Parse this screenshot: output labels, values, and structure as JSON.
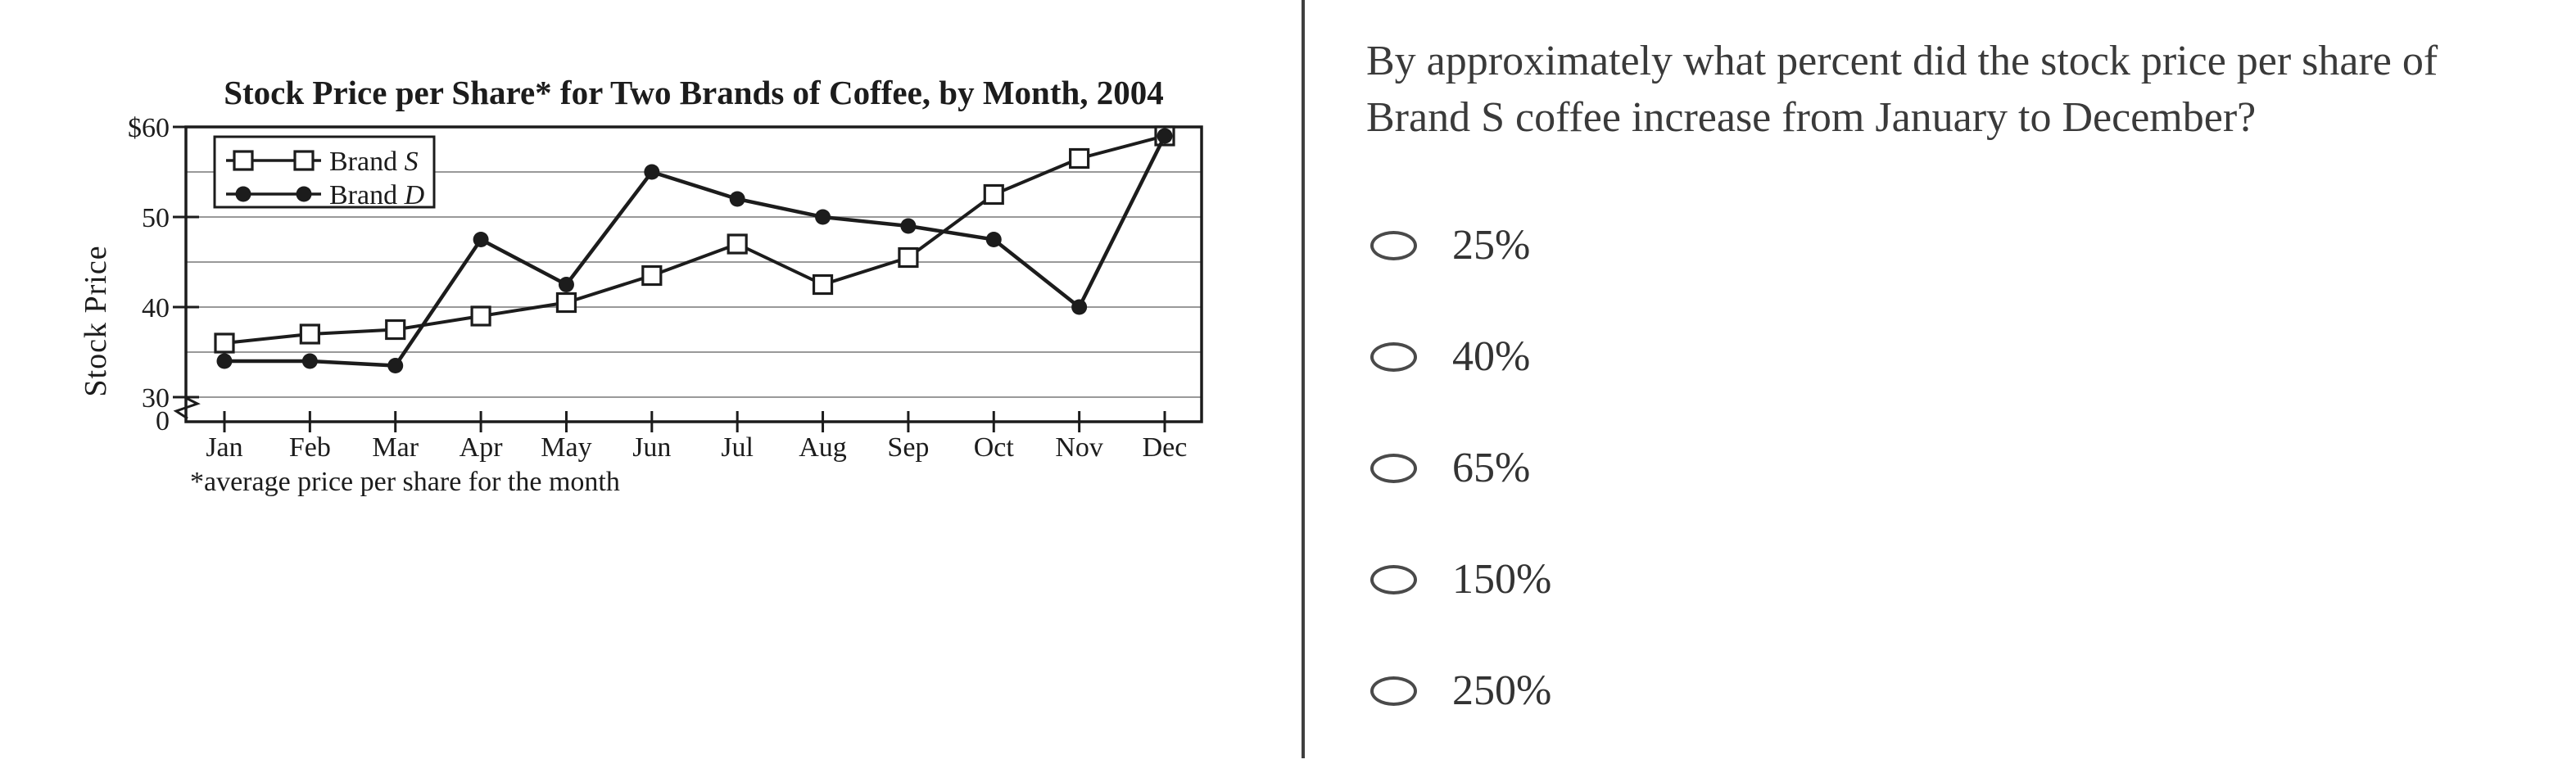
{
  "panel_divider": {
    "color": "#3f3f3f"
  },
  "chart_data": {
    "type": "line",
    "title": "Stock Price per Share* for Two Brands of Coffee, by Month, 2004",
    "ylabel": "Stock Price",
    "xlabel": "",
    "footnote": "*average price per share for the month",
    "categories": [
      "Jan",
      "Feb",
      "Mar",
      "Apr",
      "May",
      "Jun",
      "Jul",
      "Aug",
      "Sep",
      "Oct",
      "Nov",
      "Dec"
    ],
    "series": [
      {
        "name": "Brand S",
        "marker": "open-square",
        "values": [
          36,
          37,
          37.5,
          39,
          40.5,
          43.5,
          47,
          42.5,
          45.5,
          52.5,
          56.5,
          59
        ]
      },
      {
        "name": "Brand D",
        "marker": "filled-circle",
        "values": [
          34,
          34,
          33.5,
          47.5,
          42.5,
          55,
          52,
          50,
          49,
          47.5,
          40,
          59
        ]
      }
    ],
    "y_ticks": {
      "labels": [
        "$60",
        "50",
        "40",
        "30",
        "0"
      ],
      "values": [
        60,
        50,
        40,
        30,
        0
      ]
    },
    "gridline_values": [
      30,
      35,
      40,
      45,
      50,
      55
    ],
    "ylim": [
      30,
      60
    ],
    "axis_break": true,
    "grid": "horizontal",
    "legend_position": "top-left",
    "ink_color": "#1c1c1c",
    "grid_color": "#999999"
  },
  "question": {
    "text": "By approximately what percent did the stock price per share of Brand S coffee increase from January to December?",
    "options": [
      "25%",
      "40%",
      "65%",
      "150%",
      "250%"
    ]
  }
}
